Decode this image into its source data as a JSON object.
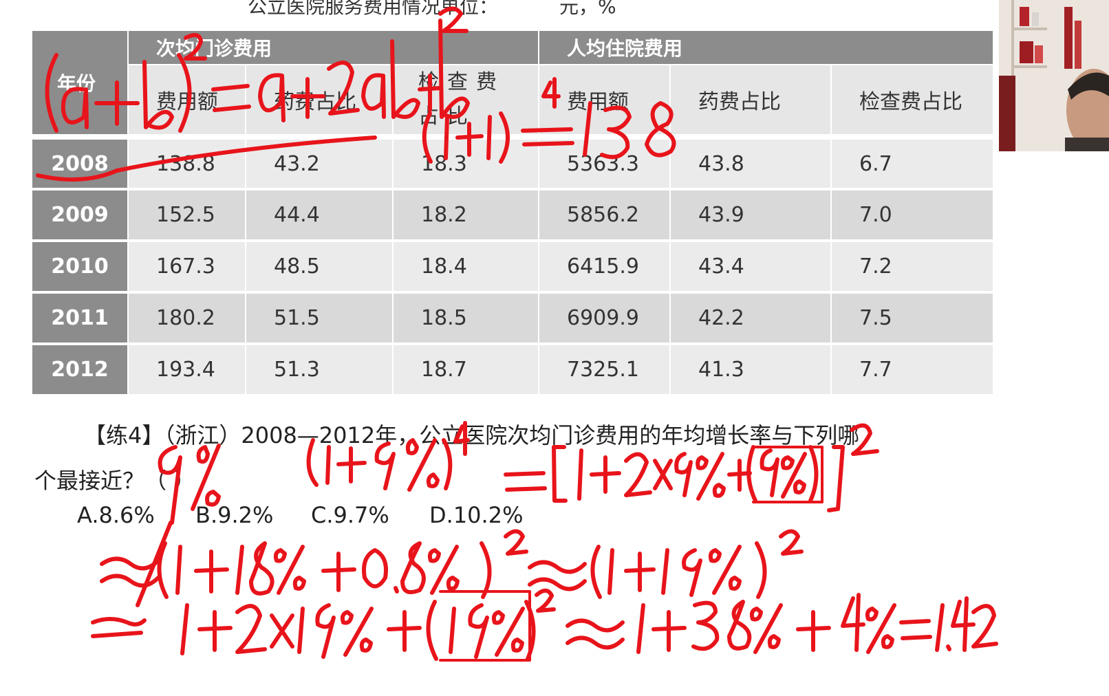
{
  "table": {
    "title": "公立医院服务费用情况单位：          元，%",
    "group_headers": [
      "次均门诊费用",
      "人均住院费用"
    ],
    "year_header": "年份",
    "sub_headers": [
      "费用额",
      "药费占比",
      "检查费占比",
      "费用额",
      "药费占比",
      "检查费占比"
    ],
    "rows": [
      {
        "year": "2008",
        "values": [
          "138.8",
          "43.2",
          "18.3",
          "5363.3",
          "43.8",
          "6.7"
        ]
      },
      {
        "year": "2009",
        "values": [
          "152.5",
          "44.4",
          "18.2",
          "5856.2",
          "43.9",
          "7.0"
        ]
      },
      {
        "year": "2010",
        "values": [
          "167.3",
          "48.5",
          "18.4",
          "6415.9",
          "43.4",
          "7.2"
        ]
      },
      {
        "year": "2011",
        "values": [
          "180.2",
          "51.5",
          "18.5",
          "6909.9",
          "42.2",
          "7.5"
        ]
      },
      {
        "year": "2012",
        "values": [
          "193.4",
          "51.3",
          "18.7",
          "7325.1",
          "41.3",
          "7.7"
        ]
      }
    ]
  },
  "question": {
    "text_line1": "【练4】（浙江）2008—2012年，公立医院次均门诊费用的年均增长率与下列哪",
    "text_line2": "个最接近？（     ）",
    "options": [
      "A.8.6%",
      "B.9.2%",
      "C.9.7%",
      "D.10.2%"
    ]
  },
  "annotations": {
    "ink_color": "#e8141b",
    "lines": [
      "(a+b)²=a²+2ab+b²",
      "(1+r)⁴=1.38",
      "9%",
      "(1+9%)⁴=[1+2×9%+(9%)²]²",
      "≈(1+18%+0.8%)²≈(1+19%)²",
      "≈1+2×19%+(19%)²≈1+38%+4%=1.42"
    ]
  }
}
